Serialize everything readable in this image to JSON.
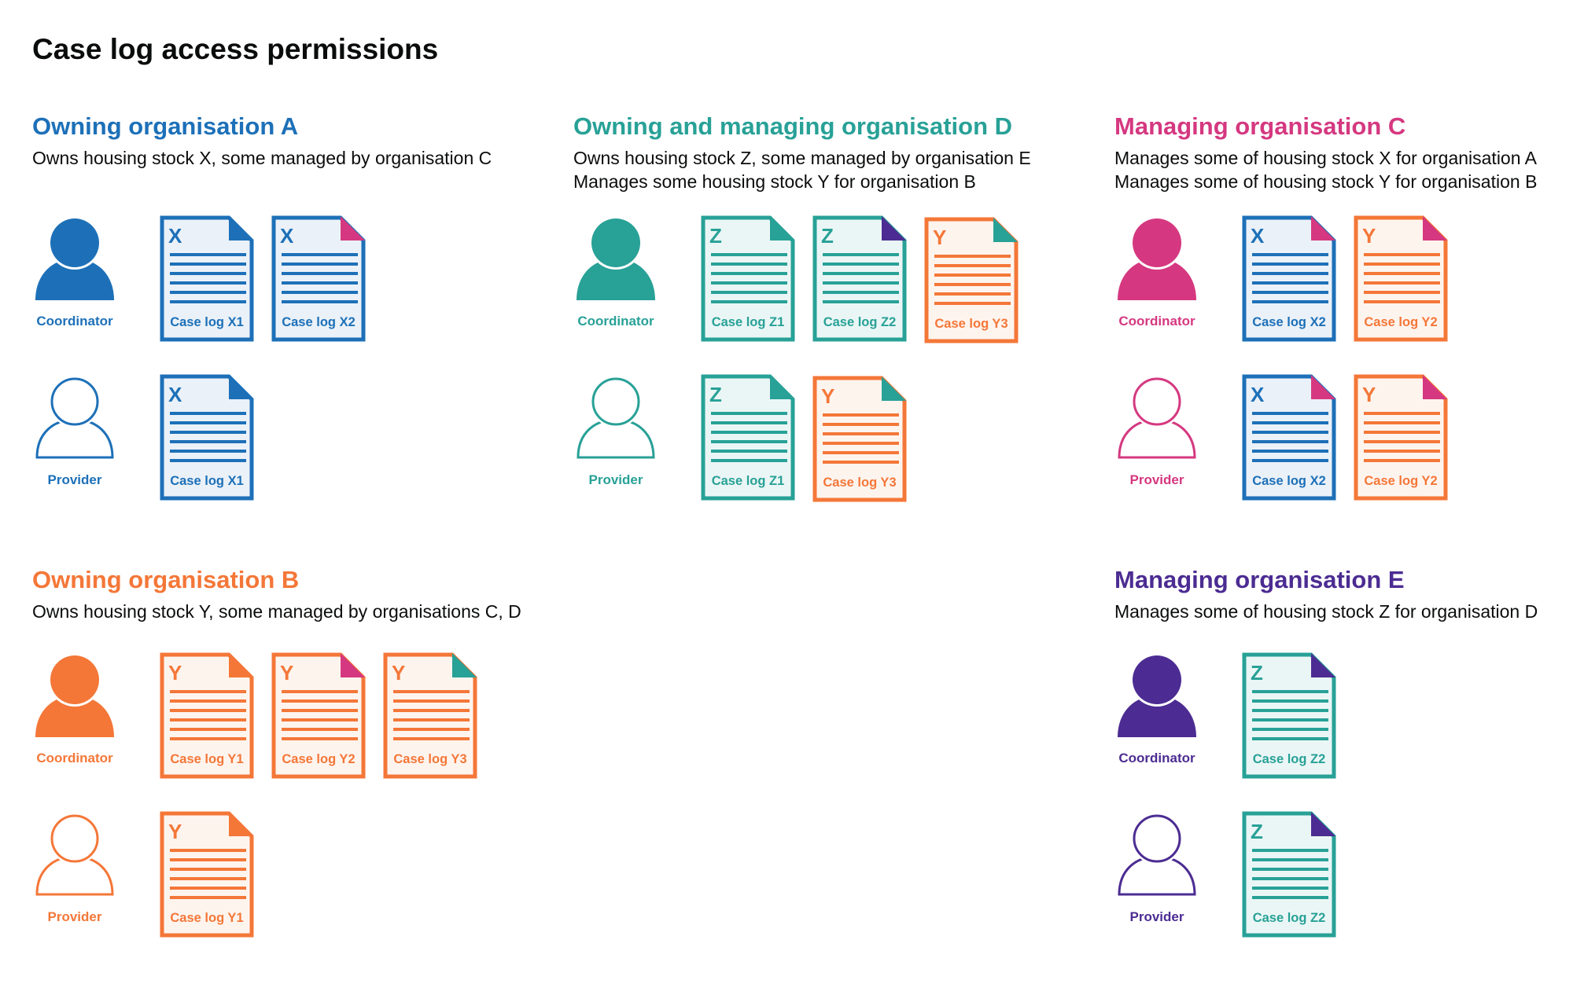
{
  "title": "Case log access permissions",
  "colors": {
    "X": "#1d70b8",
    "Y": "#f47738",
    "Z": "#28a197"
  },
  "tints": {
    "X": "#eaf1f8",
    "Y": "#fef4ee",
    "Z": "#eaf6f5"
  },
  "sections": [
    {
      "heading": "Owning organisation A",
      "color": "#1d70b8",
      "position": "top-left",
      "description": [
        "Owns housing stock X, some managed by organisation C"
      ],
      "rows": [
        {
          "role": "Coordinator",
          "icon": "person-filled-icon",
          "docs": [
            {
              "letter": "X",
              "label": "Case log X1",
              "corner": "#1d70b8"
            },
            {
              "letter": "X",
              "label": "Case log X2",
              "corner": "#d53880"
            }
          ]
        },
        {
          "role": "Provider",
          "icon": "person-outline-icon",
          "docs": [
            {
              "letter": "X",
              "label": "Case log X1",
              "corner": "#1d70b8"
            }
          ]
        }
      ]
    },
    {
      "heading": "Owning and managing organisation D",
      "color": "#28a197",
      "position": "top-middle",
      "description": [
        "Owns housing stock Z, some managed by organisation E",
        "Manages some housing stock Y for organisation B"
      ],
      "rows": [
        {
          "role": "Coordinator",
          "icon": "person-filled-icon",
          "docs": [
            {
              "letter": "Z",
              "label": "Case log Z1",
              "corner": "#28a197"
            },
            {
              "letter": "Z",
              "label": "Case log Z2",
              "corner": "#4c2c92"
            },
            {
              "letter": "Y",
              "label": "Case log Y3",
              "corner": "#28a197"
            }
          ]
        },
        {
          "role": "Provider",
          "icon": "person-outline-icon",
          "docs": [
            {
              "letter": "Z",
              "label": "Case log Z1",
              "corner": "#28a197"
            },
            {
              "letter": "Y",
              "label": "Case log Y3",
              "corner": "#28a197"
            }
          ]
        }
      ]
    },
    {
      "heading": "Managing organisation C",
      "color": "#d53880",
      "position": "top-right",
      "description": [
        "Manages some of housing stock X for organisation A",
        "Manages some of housing stock Y for organisation B"
      ],
      "rows": [
        {
          "role": "Coordinator",
          "icon": "person-filled-icon",
          "docs": [
            {
              "letter": "X",
              "label": "Case log X2",
              "corner": "#d53880"
            },
            {
              "letter": "Y",
              "label": "Case log Y2",
              "corner": "#d53880"
            }
          ]
        },
        {
          "role": "Provider",
          "icon": "person-outline-icon",
          "docs": [
            {
              "letter": "X",
              "label": "Case log X2",
              "corner": "#d53880"
            },
            {
              "letter": "Y",
              "label": "Case log Y2",
              "corner": "#d53880"
            }
          ]
        }
      ]
    },
    {
      "heading": "Owning organisation B",
      "color": "#f47738",
      "position": "bottom-left",
      "description": [
        "Owns housing stock Y, some managed by organisations C, D"
      ],
      "rows": [
        {
          "role": "Coordinator",
          "icon": "person-filled-icon",
          "docs": [
            {
              "letter": "Y",
              "label": "Case log Y1",
              "corner": "#f47738"
            },
            {
              "letter": "Y",
              "label": "Case log Y2",
              "corner": "#d53880"
            },
            {
              "letter": "Y",
              "label": "Case log Y3",
              "corner": "#28a197"
            }
          ]
        },
        {
          "role": "Provider",
          "icon": "person-outline-icon",
          "docs": [
            {
              "letter": "Y",
              "label": "Case log Y1",
              "corner": "#f47738"
            }
          ]
        }
      ]
    },
    {
      "heading": "Managing organisation E",
      "color": "#4c2c92",
      "position": "bottom-right",
      "description": [
        "Manages some of housing stock Z for organisation D"
      ],
      "rows": [
        {
          "role": "Coordinator",
          "icon": "person-filled-icon",
          "docs": [
            {
              "letter": "Z",
              "label": "Case log Z2",
              "corner": "#4c2c92"
            }
          ]
        },
        {
          "role": "Provider",
          "icon": "person-outline-icon",
          "docs": [
            {
              "letter": "Z",
              "label": "Case log Z2",
              "corner": "#4c2c92"
            }
          ]
        }
      ]
    }
  ]
}
